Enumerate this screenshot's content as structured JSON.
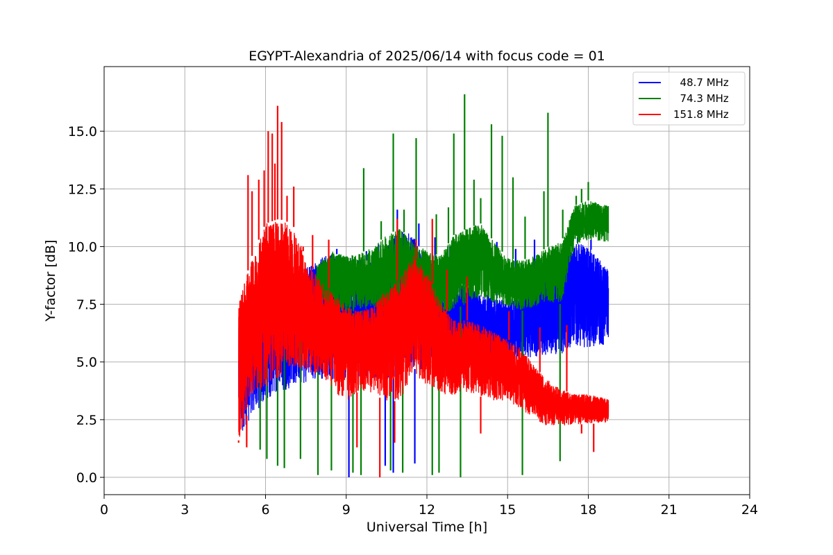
{
  "chart_data": {
    "type": "line",
    "title": "EGYPT-Alexandria of 2025/06/14 with focus code = 01",
    "xlabel": "Universal Time [h]",
    "ylabel": "Y-factor [dB]",
    "xlim": [
      0,
      24
    ],
    "ylim": [
      -0.75,
      17.8
    ],
    "xticks": [
      "0",
      "3",
      "6",
      "9",
      "12",
      "15",
      "18",
      "21",
      "24"
    ],
    "yticks": [
      "0.0",
      "2.5",
      "5.0",
      "7.5",
      "10.0",
      "12.5",
      "15.0"
    ],
    "grid": true,
    "legend_position": "top-right",
    "series": [
      {
        "name": "  48.7 MHz",
        "color": "#0000ff",
        "x": [
          5.0,
          5.5,
          6.0,
          6.5,
          7.0,
          7.5,
          8.0,
          8.5,
          9.0,
          9.5,
          10.0,
          10.5,
          11.0,
          11.5,
          12.0,
          12.5,
          13.0,
          13.5,
          14.0,
          14.5,
          15.0,
          15.5,
          16.0,
          16.5,
          17.0,
          17.5,
          18.0,
          18.75
        ],
        "low": [
          1.7,
          2.6,
          3.3,
          3.7,
          3.9,
          4.1,
          4.3,
          4.2,
          4.3,
          4.2,
          4.3,
          4.2,
          4.4,
          4.7,
          4.6,
          4.8,
          5.0,
          5.2,
          5.1,
          5.2,
          5.0,
          5.1,
          5.2,
          5.3,
          5.3,
          5.7,
          5.6,
          5.8
        ],
        "high": [
          6.5,
          7.8,
          8.4,
          8.9,
          9.0,
          9.2,
          9.5,
          9.7,
          9.6,
          9.5,
          9.3,
          10.0,
          10.8,
          10.5,
          9.3,
          7.8,
          8.2,
          8.4,
          8.0,
          7.8,
          7.6,
          8.0,
          8.6,
          9.2,
          9.6,
          10.2,
          10.0,
          9.0
        ]
      },
      {
        "name": "  74.3 MHz",
        "color": "#008000",
        "x": [
          7.9,
          8.5,
          9.0,
          9.5,
          10.0,
          10.5,
          11.0,
          11.5,
          12.0,
          12.5,
          13.0,
          13.5,
          14.0,
          14.5,
          15.0,
          15.5,
          16.0,
          16.5,
          17.0,
          17.5,
          18.0,
          18.75
        ],
        "low": [
          7.8,
          7.3,
          7.0,
          7.2,
          7.4,
          7.0,
          7.6,
          7.2,
          7.0,
          6.9,
          7.3,
          7.5,
          7.8,
          7.5,
          7.4,
          7.2,
          7.4,
          7.6,
          7.5,
          10.0,
          10.3,
          10.2
        ],
        "high": [
          9.2,
          9.8,
          9.6,
          9.7,
          10.0,
          10.5,
          10.8,
          10.2,
          9.8,
          9.6,
          10.5,
          10.8,
          11.0,
          10.2,
          9.5,
          9.4,
          9.6,
          10.0,
          10.2,
          11.8,
          12.0,
          11.8
        ]
      },
      {
        "name": "151.8 MHz",
        "color": "#ff0000",
        "x": [
          5.0,
          5.5,
          6.0,
          6.5,
          7.0,
          7.5,
          8.0,
          8.5,
          9.0,
          9.5,
          10.0,
          10.5,
          11.0,
          11.5,
          12.0,
          12.5,
          13.0,
          13.5,
          14.0,
          14.5,
          15.0,
          15.5,
          16.0,
          16.5,
          17.0,
          17.5,
          18.0,
          18.75
        ],
        "low": [
          1.6,
          3.4,
          3.9,
          4.3,
          4.7,
          4.6,
          4.4,
          3.8,
          3.2,
          3.8,
          3.6,
          3.3,
          3.3,
          4.6,
          3.9,
          3.6,
          3.5,
          3.7,
          3.5,
          3.3,
          3.2,
          2.9,
          2.5,
          2.2,
          2.2,
          2.3,
          2.3,
          2.4
        ],
        "high": [
          7.5,
          9.6,
          11.0,
          11.2,
          11.0,
          9.5,
          8.6,
          8.0,
          7.4,
          7.2,
          7.4,
          8.2,
          8.6,
          9.6,
          8.9,
          7.6,
          6.8,
          6.8,
          6.6,
          6.3,
          6.0,
          5.6,
          4.8,
          4.2,
          3.8,
          3.6,
          3.6,
          3.4
        ]
      }
    ],
    "spikes": {
      "48.7": [
        [
          6.75,
          8.4
        ],
        [
          7.35,
          9.5
        ],
        [
          8.1,
          9.3
        ],
        [
          8.65,
          9.9
        ],
        [
          9.75,
          9.8
        ],
        [
          10.2,
          10.1
        ],
        [
          10.9,
          11.6
        ],
        [
          11.7,
          11.0
        ],
        [
          12.3,
          10.4
        ],
        [
          12.85,
          10.0
        ],
        [
          13.9,
          9.8
        ],
        [
          14.6,
          10.2
        ],
        [
          15.3,
          9.9
        ],
        [
          16.0,
          10.3
        ],
        [
          16.75,
          9.8
        ],
        [
          17.15,
          10.2
        ],
        [
          17.6,
          10.4
        ],
        [
          18.1,
          10.3
        ],
        [
          18.55,
          9.1
        ],
        [
          9.1,
          0.0
        ],
        [
          10.45,
          0.5
        ],
        [
          10.75,
          0.2
        ],
        [
          11.55,
          0.6
        ]
      ],
      "74.3": [
        [
          9.65,
          13.4
        ],
        [
          10.3,
          11.1
        ],
        [
          10.75,
          14.9
        ],
        [
          11.15,
          11.6
        ],
        [
          11.6,
          14.7
        ],
        [
          12.35,
          11.4
        ],
        [
          12.8,
          11.7
        ],
        [
          13.0,
          14.9
        ],
        [
          13.4,
          16.6
        ],
        [
          13.75,
          12.9
        ],
        [
          14.0,
          12.1
        ],
        [
          14.4,
          15.3
        ],
        [
          14.8,
          14.8
        ],
        [
          15.2,
          13.0
        ],
        [
          15.65,
          11.3
        ],
        [
          16.35,
          12.4
        ],
        [
          16.5,
          15.8
        ],
        [
          17.05,
          11.6
        ],
        [
          17.55,
          12.2
        ],
        [
          17.75,
          12.5
        ],
        [
          18.0,
          12.8
        ],
        [
          5.8,
          1.2
        ],
        [
          6.05,
          0.8
        ],
        [
          6.45,
          0.5
        ],
        [
          6.7,
          0.4
        ],
        [
          7.3,
          0.8
        ],
        [
          7.95,
          0.1
        ],
        [
          8.45,
          0.3
        ],
        [
          9.25,
          0.2
        ],
        [
          9.55,
          0.1
        ],
        [
          10.65,
          0.3
        ],
        [
          11.1,
          0.2
        ],
        [
          12.2,
          0.1
        ],
        [
          12.45,
          0.2
        ],
        [
          13.25,
          0.0
        ],
        [
          15.55,
          0.1
        ],
        [
          16.95,
          0.7
        ]
      ],
      "151.8": [
        [
          5.35,
          13.1
        ],
        [
          5.5,
          12.4
        ],
        [
          5.75,
          12.9
        ],
        [
          5.95,
          13.3
        ],
        [
          6.1,
          15.0
        ],
        [
          6.25,
          14.9
        ],
        [
          6.35,
          13.6
        ],
        [
          6.45,
          16.1
        ],
        [
          6.6,
          15.4
        ],
        [
          6.8,
          12.2
        ],
        [
          7.05,
          12.6
        ],
        [
          7.4,
          10.0
        ],
        [
          7.75,
          10.5
        ],
        [
          8.35,
          10.3
        ],
        [
          10.9,
          11.2
        ],
        [
          11.6,
          10.3
        ],
        [
          12.2,
          11.2
        ],
        [
          12.75,
          9.0
        ],
        [
          13.5,
          8.7
        ],
        [
          15.05,
          7.2
        ],
        [
          16.2,
          6.5
        ],
        [
          17.2,
          6.6
        ],
        [
          5.0,
          1.5
        ],
        [
          5.3,
          1.3
        ],
        [
          9.4,
          1.3
        ],
        [
          10.25,
          0.0
        ],
        [
          10.8,
          1.5
        ],
        [
          14.0,
          1.9
        ],
        [
          17.75,
          1.9
        ],
        [
          18.2,
          1.1
        ]
      ]
    }
  }
}
